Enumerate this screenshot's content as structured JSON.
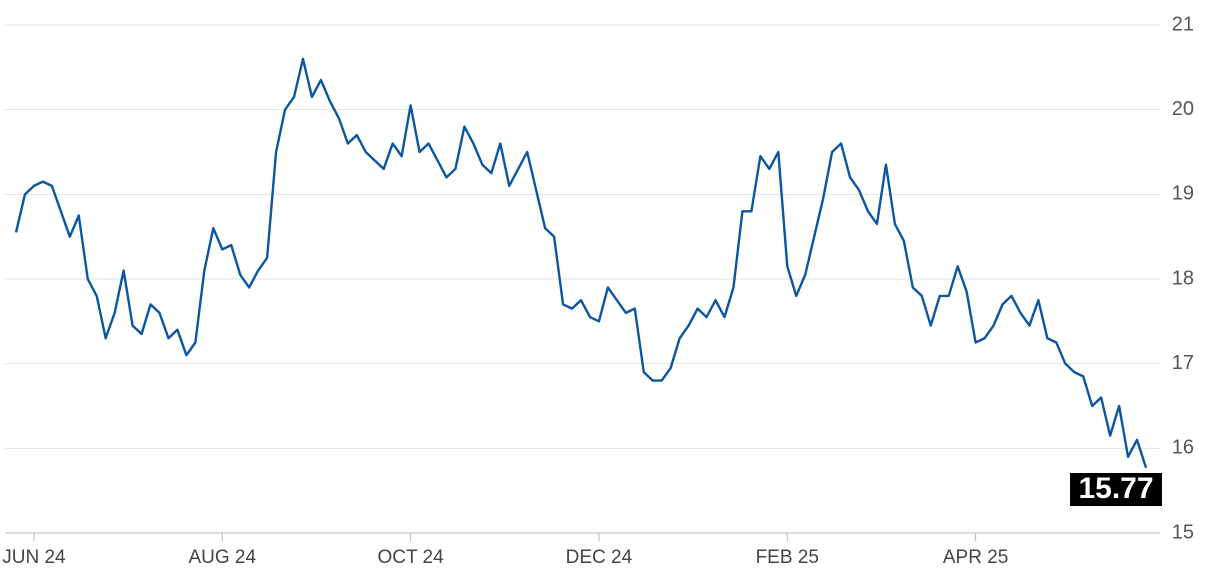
{
  "chart_data": {
    "type": "line",
    "categories": [
      null,
      null,
      "JUN 24",
      null,
      null,
      null,
      null,
      null,
      null,
      null,
      null,
      null,
      null,
      null,
      null,
      null,
      null,
      null,
      null,
      null,
      null,
      null,
      null,
      "AUG 24",
      null,
      null,
      null,
      null,
      null,
      null,
      null,
      null,
      null,
      null,
      null,
      null,
      null,
      null,
      null,
      null,
      null,
      null,
      null,
      null,
      "OCT 24",
      null,
      null,
      null,
      null,
      null,
      null,
      null,
      null,
      null,
      null,
      null,
      null,
      null,
      null,
      null,
      null,
      null,
      null,
      null,
      null,
      "DEC 24",
      null,
      null,
      null,
      null,
      null,
      null,
      null,
      null,
      null,
      null,
      null,
      null,
      null,
      null,
      null,
      null,
      null,
      null,
      null,
      null,
      "FEB 25",
      null,
      null,
      null,
      null,
      null,
      null,
      null,
      null,
      null,
      null,
      null,
      null,
      null,
      null,
      null,
      null,
      null,
      null,
      null,
      null,
      "APR 25",
      null,
      null,
      null,
      null,
      null,
      null,
      null,
      null,
      null,
      null,
      null,
      null,
      null,
      null,
      null,
      null,
      null,
      null,
      null
    ],
    "values": [
      18.55,
      19.0,
      19.1,
      19.15,
      19.1,
      18.8,
      18.5,
      18.75,
      18.0,
      17.8,
      17.3,
      17.6,
      18.1,
      17.45,
      17.35,
      17.7,
      17.6,
      17.3,
      17.4,
      17.1,
      17.25,
      18.1,
      18.6,
      18.35,
      18.4,
      18.05,
      17.9,
      18.1,
      18.25,
      19.5,
      20.0,
      20.15,
      20.6,
      20.15,
      20.35,
      20.1,
      19.9,
      19.6,
      19.7,
      19.5,
      19.4,
      19.3,
      19.6,
      19.45,
      20.05,
      19.5,
      19.6,
      19.4,
      19.2,
      19.3,
      19.8,
      19.6,
      19.35,
      19.25,
      19.6,
      19.1,
      19.3,
      19.5,
      19.05,
      18.6,
      18.5,
      17.7,
      17.65,
      17.75,
      17.55,
      17.5,
      17.9,
      17.75,
      17.6,
      17.65,
      16.9,
      16.8,
      16.8,
      16.95,
      17.3,
      17.45,
      17.65,
      17.55,
      17.75,
      17.55,
      17.9,
      18.8,
      18.8,
      19.45,
      19.3,
      19.5,
      18.15,
      17.8,
      18.05,
      18.5,
      18.95,
      19.5,
      19.6,
      19.2,
      19.05,
      18.8,
      18.65,
      19.35,
      18.65,
      18.45,
      17.9,
      17.8,
      17.45,
      17.8,
      17.8,
      18.15,
      17.85,
      17.25,
      17.3,
      17.45,
      17.7,
      17.8,
      17.6,
      17.45,
      17.75,
      17.3,
      17.25,
      17.0,
      16.9,
      16.85,
      16.5,
      16.6,
      16.15,
      16.5,
      15.9,
      16.1,
      15.77
    ],
    "color": "#0a56a0",
    "ylim": [
      15,
      21
    ],
    "yticks": [
      15,
      16,
      17,
      18,
      19,
      20,
      21
    ],
    "grid": true
  }
}
